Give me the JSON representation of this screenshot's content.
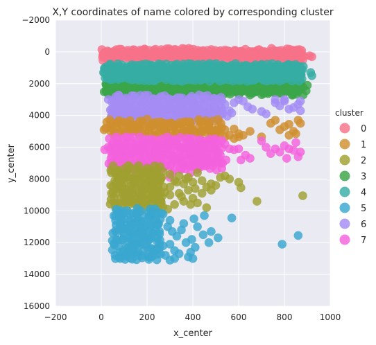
{
  "chart_data": {
    "type": "scatter",
    "title": "X,Y coordinates of name colored by corresponding cluster",
    "xlabel": "x_center",
    "ylabel": "y_center",
    "xlim": [
      -200,
      1000
    ],
    "ylim": [
      -2000,
      16000
    ],
    "y_inverted": true,
    "grid": true,
    "xticks": [
      "−200",
      "0",
      "200",
      "400",
      "600",
      "800",
      "1000"
    ],
    "yticks": [
      "−2000",
      "0",
      "2000",
      "4000",
      "6000",
      "8000",
      "10000",
      "12000",
      "14000",
      "16000"
    ],
    "legend": {
      "title": "cluster",
      "placement": "right"
    },
    "series": [
      {
        "name": "0",
        "color": "#f77189",
        "bands": [
          {
            "x": [
              0,
              890
            ],
            "y": [
              -100,
              600
            ],
            "density": 3.0
          }
        ],
        "points": [
          [
            910,
            250
          ],
          [
            920,
            300
          ],
          [
            880,
            520
          ],
          [
            870,
            450
          ],
          [
            620,
            520
          ],
          [
            700,
            440
          ],
          [
            30,
            500
          ],
          [
            15,
            300
          ]
        ]
      },
      {
        "name": "1",
        "color": "#cf8f2e",
        "bands": [
          {
            "x": [
              30,
              530
            ],
            "y": [
              4400,
              5350
            ],
            "density": 1.6
          }
        ],
        "points": [
          [
            540,
            4900
          ],
          [
            580,
            4850
          ],
          [
            600,
            5150
          ],
          [
            620,
            5250
          ],
          [
            650,
            5000
          ],
          [
            700,
            5350
          ],
          [
            740,
            4500
          ],
          [
            760,
            4300
          ],
          [
            780,
            4900
          ],
          [
            800,
            4700
          ],
          [
            820,
            4550
          ],
          [
            840,
            5000
          ],
          [
            850,
            5150
          ],
          [
            860,
            4300
          ],
          [
            870,
            4500
          ],
          [
            820,
            5250
          ],
          [
            470,
            5200
          ],
          [
            500,
            5400
          ],
          [
            520,
            5100
          ],
          [
            540,
            5350
          ],
          [
            560,
            5250
          ],
          [
            580,
            5450
          ],
          [
            600,
            5350
          ],
          [
            12,
            4900
          ]
        ]
      },
      {
        "name": "2",
        "color": "#a0a031",
        "bands": [
          {
            "x": [
              50,
              280
            ],
            "y": [
              7300,
              9800
            ],
            "density": 1.6
          }
        ],
        "points": [
          [
            300,
            7700
          ],
          [
            320,
            8100
          ],
          [
            340,
            7800
          ],
          [
            360,
            8300
          ],
          [
            380,
            7900
          ],
          [
            400,
            8200
          ],
          [
            420,
            7600
          ],
          [
            440,
            8100
          ],
          [
            460,
            8500
          ],
          [
            480,
            8300
          ],
          [
            500,
            8400
          ],
          [
            520,
            7900
          ],
          [
            540,
            7800
          ],
          [
            560,
            8000
          ],
          [
            600,
            8200
          ],
          [
            610,
            8550
          ],
          [
            680,
            9400
          ],
          [
            880,
            9050
          ],
          [
            300,
            9000
          ],
          [
            320,
            9600
          ],
          [
            340,
            8900
          ],
          [
            360,
            9400
          ],
          [
            380,
            8700
          ],
          [
            400,
            9200
          ],
          [
            420,
            9500
          ],
          [
            440,
            8900
          ],
          [
            460,
            9800
          ],
          [
            480,
            8700
          ],
          [
            300,
            8500
          ],
          [
            330,
            8200
          ],
          [
            350,
            9100
          ],
          [
            370,
            8000
          ],
          [
            390,
            9600
          ],
          [
            410,
            8600
          ],
          [
            290,
            9900
          ],
          [
            230,
            8700
          ],
          [
            240,
            9300
          ],
          [
            250,
            9800
          ]
        ]
      },
      {
        "name": "3",
        "color": "#3ba549",
        "bands": [
          {
            "x": [
              20,
              880
            ],
            "y": [
              1900,
              2700
            ],
            "density": 3.0
          }
        ],
        "points": [
          [
            900,
            2100
          ],
          [
            895,
            2450
          ]
        ]
      },
      {
        "name": "4",
        "color": "#36ada4",
        "bands": [
          {
            "x": [
              20,
              880
            ],
            "y": [
              850,
              1900
            ],
            "density": 3.0
          }
        ],
        "points": [
          [
            915,
            1300
          ],
          [
            920,
            1500
          ],
          [
            10,
            1300
          ],
          [
            15,
            1100
          ]
        ]
      },
      {
        "name": "5",
        "color": "#39a7d0",
        "bands": [
          {
            "x": [
              60,
              260
            ],
            "y": [
              10000,
              13200
            ],
            "density": 1.5
          }
        ],
        "points": [
          [
            270,
            10200
          ],
          [
            290,
            11000
          ],
          [
            300,
            10600
          ],
          [
            310,
            11300
          ],
          [
            330,
            11600
          ],
          [
            300,
            12100
          ],
          [
            320,
            12500
          ],
          [
            280,
            12800
          ],
          [
            350,
            11200
          ],
          [
            360,
            10800
          ],
          [
            370,
            12000
          ],
          [
            390,
            12600
          ],
          [
            400,
            13000
          ],
          [
            410,
            12300
          ],
          [
            380,
            12900
          ],
          [
            395,
            11800
          ],
          [
            405,
            10500
          ],
          [
            420,
            11000
          ],
          [
            445,
            11500
          ],
          [
            450,
            10300
          ],
          [
            470,
            12000
          ],
          [
            480,
            11300
          ],
          [
            510,
            11700
          ],
          [
            570,
            10450
          ],
          [
            790,
            12100
          ],
          [
            860,
            11550
          ],
          [
            340,
            12700
          ],
          [
            300,
            13100
          ],
          [
            320,
            13000
          ],
          [
            270,
            12200
          ]
        ]
      },
      {
        "name": "6",
        "color": "#a48cf4",
        "bands": [
          {
            "x": [
              40,
              520
            ],
            "y": [
              2850,
              4250
            ],
            "density": 1.9
          }
        ],
        "points": [
          [
            540,
            3300
          ],
          [
            560,
            3700
          ],
          [
            580,
            3200
          ],
          [
            600,
            3000
          ],
          [
            620,
            3100
          ],
          [
            640,
            3450
          ],
          [
            660,
            3600
          ],
          [
            700,
            3750
          ],
          [
            720,
            3900
          ],
          [
            760,
            3200
          ],
          [
            780,
            3400
          ],
          [
            800,
            3100
          ],
          [
            820,
            3600
          ],
          [
            840,
            3500
          ],
          [
            860,
            3300
          ],
          [
            870,
            3100
          ],
          [
            870,
            3700
          ],
          [
            800,
            3000
          ],
          [
            760,
            3000
          ],
          [
            530,
            3900
          ],
          [
            550,
            4050
          ],
          [
            570,
            3850
          ]
        ]
      },
      {
        "name": "7",
        "color": "#f461dd",
        "bands": [
          {
            "x": [
              40,
              520
            ],
            "y": [
              5500,
              7300
            ],
            "density": 1.9
          }
        ],
        "points": [
          [
            540,
            5800
          ],
          [
            560,
            6100
          ],
          [
            580,
            6150
          ],
          [
            600,
            6100
          ],
          [
            610,
            6800
          ],
          [
            630,
            6500
          ],
          [
            650,
            6700
          ],
          [
            700,
            5600
          ],
          [
            720,
            6000
          ],
          [
            740,
            6400
          ],
          [
            760,
            6100
          ],
          [
            780,
            6300
          ],
          [
            800,
            5900
          ],
          [
            820,
            6100
          ],
          [
            840,
            6200
          ],
          [
            860,
            6600
          ],
          [
            870,
            6300
          ],
          [
            810,
            6700
          ],
          [
            850,
            5700
          ],
          [
            15,
            6150
          ],
          [
            30,
            6000
          ],
          [
            520,
            6500
          ],
          [
            530,
            7000
          ],
          [
            545,
            6800
          ],
          [
            310,
            7600
          ],
          [
            350,
            7400
          ],
          [
            390,
            7600
          ],
          [
            420,
            7400
          ],
          [
            300,
            7900
          ]
        ]
      }
    ]
  }
}
